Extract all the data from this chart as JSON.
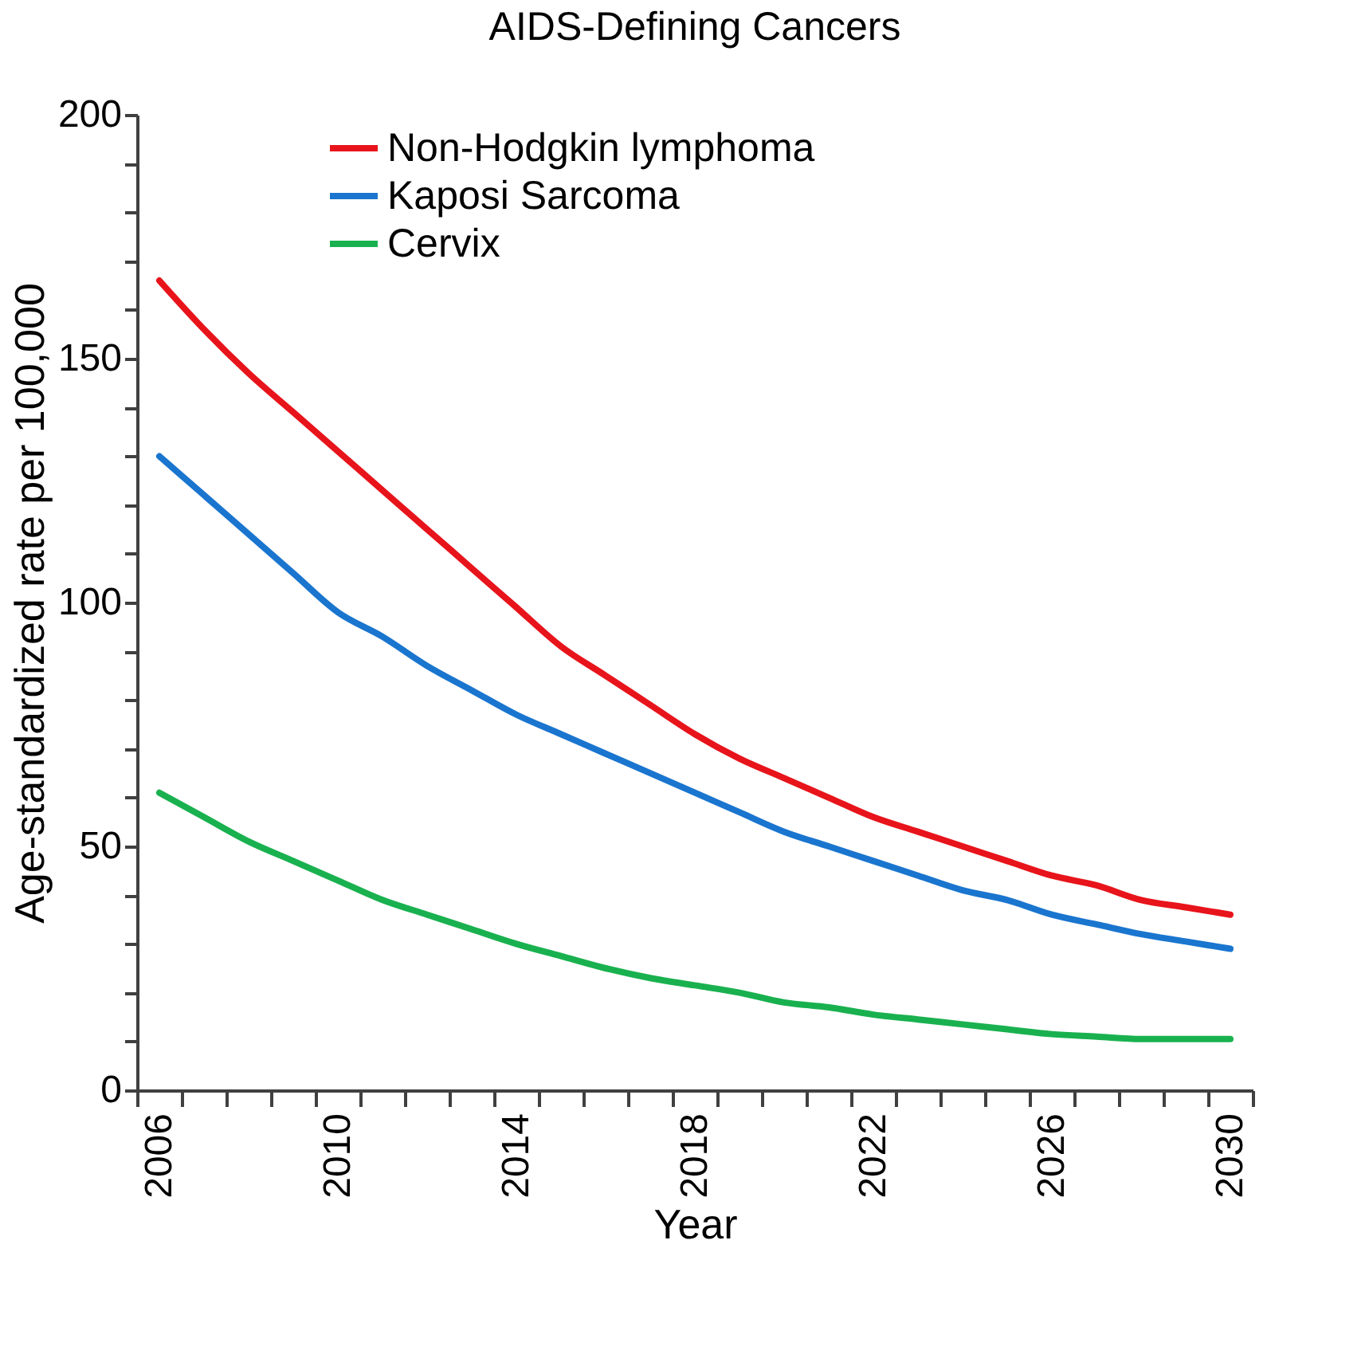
{
  "chart_data": {
    "type": "line",
    "title": "AIDS-Defining Cancers",
    "xlabel": "Year",
    "ylabel": "Age-standardized rate per 100,000",
    "categories": [
      "2006",
      null,
      null,
      null,
      "2010",
      null,
      null,
      null,
      "2014",
      null,
      null,
      null,
      "2018",
      null,
      null,
      null,
      "2022",
      null,
      null,
      null,
      "2026",
      null,
      null,
      null,
      "2030"
    ],
    "series": [
      {
        "name": "Non-Hodgkin lymphoma",
        "color": "#e8141b",
        "values": [
          166,
          156,
          147,
          139,
          131,
          123,
          115,
          107,
          99,
          91,
          85,
          79,
          73,
          68,
          64,
          60,
          56,
          53,
          50,
          47,
          44,
          42,
          39,
          37.5,
          36
        ]
      },
      {
        "name": "Kaposi Sarcoma",
        "color": "#1a75cf",
        "values": [
          130,
          122,
          114,
          106,
          98,
          93,
          87,
          82,
          77,
          73,
          69,
          65,
          61,
          57,
          53,
          50,
          47,
          44,
          41,
          39,
          36,
          34,
          32,
          30.5,
          29
        ]
      },
      {
        "name": "Cervix",
        "color": "#19b14f",
        "values": [
          61,
          56,
          51,
          47,
          43,
          39,
          36,
          33,
          30,
          27.5,
          25,
          23,
          21.5,
          20,
          18,
          17,
          15.5,
          14.5,
          13.5,
          12.5,
          11.5,
          11,
          10.5,
          10.5,
          10.5
        ]
      }
    ],
    "ylim": [
      0,
      200
    ],
    "yticks": [
      0,
      {
        "value": 10,
        "label": null
      },
      {
        "value": 20,
        "label": null
      },
      {
        "value": 30,
        "label": null
      },
      {
        "value": 40,
        "label": null
      },
      50,
      {
        "value": 60,
        "label": null
      },
      {
        "value": 70,
        "label": null
      },
      {
        "value": 80,
        "label": null
      },
      {
        "value": 90,
        "label": null
      },
      100,
      {
        "value": 110,
        "label": null
      },
      {
        "value": 120,
        "label": null
      },
      {
        "value": 130,
        "label": null
      },
      {
        "value": 140,
        "label": null
      },
      150,
      {
        "value": 160,
        "label": null
      },
      {
        "value": 170,
        "label": null
      },
      {
        "value": 180,
        "label": null
      },
      {
        "value": 190,
        "label": null
      },
      200
    ],
    "grid": false,
    "legend": "top",
    "marker": "none",
    "line_style": "solid"
  }
}
